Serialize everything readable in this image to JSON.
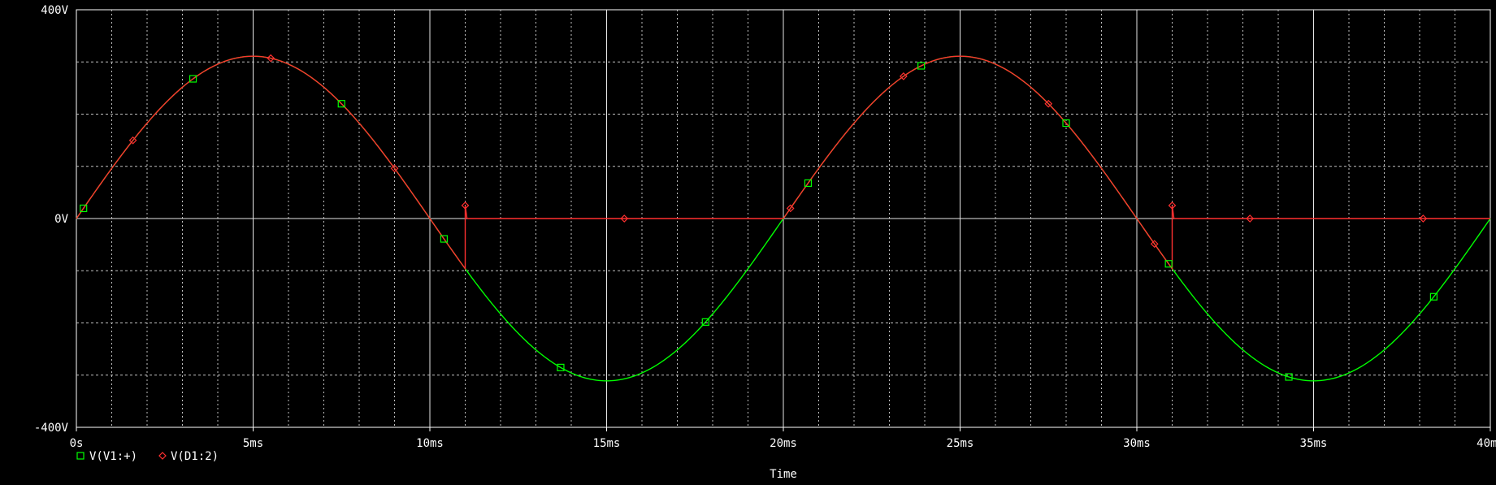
{
  "chart_data": {
    "type": "line",
    "xlabel": "Time",
    "xlim": [
      0,
      40
    ],
    "ylim": [
      -400,
      400
    ],
    "x_ticks": [
      "0s",
      "5ms",
      "10ms",
      "15ms",
      "20ms",
      "25ms",
      "30ms",
      "35ms",
      "40ms"
    ],
    "y_ticks": [
      "400V",
      "0V",
      "-400V"
    ],
    "grid": true,
    "legend_placement": "bottom-left",
    "colors": {
      "background": "#000000",
      "axis": "#ffffff",
      "grid": "#bfbfbf",
      "text": "#ffffff",
      "series1": "#00ff00",
      "series2": "#ff3030"
    },
    "series": [
      {
        "name": "V(V1:+)",
        "marker": "square",
        "color": "#00ff00",
        "amplitude": 311,
        "period_ms": 20,
        "marker_x": [
          0.2,
          3.3,
          7.5,
          10.4,
          13.7,
          17.8,
          20.7,
          23.9,
          28.0,
          30.9,
          34.3,
          38.4
        ]
      },
      {
        "name": "V(D1:2)",
        "marker": "diamond",
        "color": "#ff3030",
        "amplitude": 311,
        "period_ms": 20,
        "cutoff_ms": [
          11.0,
          31.0
        ],
        "resume_ms": [
          20.0
        ],
        "marker_x": [
          1.6,
          5.5,
          9.0,
          11.0,
          15.5,
          20.2,
          23.4,
          27.5,
          30.5,
          31.0,
          33.2,
          38.1
        ]
      }
    ]
  }
}
